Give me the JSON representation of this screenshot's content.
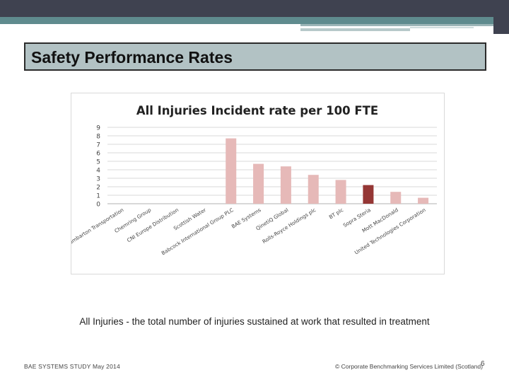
{
  "slide": {
    "title": "Safety Performance Rates",
    "caption": "All Injuries - the total number of injuries sustained at work that resulted in treatment",
    "footer_left": "BAE SYSTEMS STUDY May 2014",
    "footer_right": "© Corporate Benchmarking Services Limited (Scotland)",
    "page_number": "6"
  },
  "chart_data": {
    "type": "bar",
    "title": "All Injuries Incident rate per 100 FTE",
    "xlabel": "",
    "ylabel": "",
    "ylim": [
      0,
      9
    ],
    "yticks": [
      "0",
      "1",
      "2",
      "3",
      "4",
      "5",
      "6",
      "7",
      "8",
      "9"
    ],
    "grid": true,
    "categories": [
      "Dumbarton Transportation",
      "Chemring Group",
      "CNI Europe Distribution",
      "Scottish Water",
      "Babcock International Group PLC",
      "BAE Systems",
      "QinetiQ Global",
      "Rolls-Royce Holdings plc",
      "BT plc",
      "Sopra Steria",
      "Mott MacDonald",
      "United Technologies Corporation"
    ],
    "values": [
      0,
      0,
      0,
      0,
      7.7,
      4.7,
      4.4,
      3.4,
      2.8,
      2.2,
      1.4,
      0.7
    ],
    "highlight_index": 9,
    "colors": {
      "bar": "#e6b9b8",
      "highlight": "#953735"
    }
  }
}
